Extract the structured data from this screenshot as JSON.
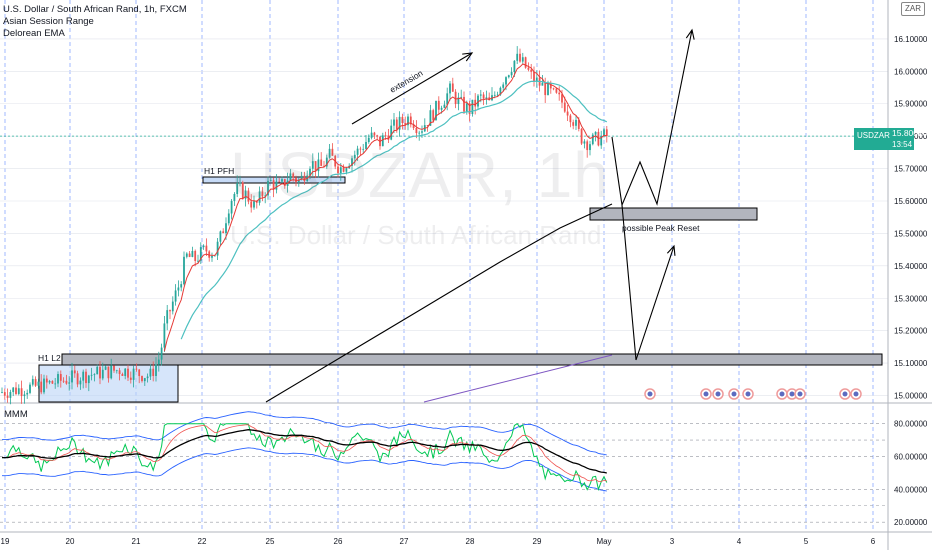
{
  "legend": {
    "title": "U.S. Dollar / South African Rand, 1h, FXCM",
    "indicator_1": "Asian Session Range",
    "indicator_2": "Delorean EMA",
    "oscillator": "MMM"
  },
  "symbol_badge": "ZAR",
  "watermark": {
    "main": "USDZAR, 1h",
    "sub": "U.S. Dollar / South African Rand"
  },
  "price_tag": {
    "symbol": "USDZAR",
    "value": "15.80020",
    "countdown": "13:54"
  },
  "annotations": {
    "h1_pfh": "H1 PFH",
    "h1_l2": "H1 L2",
    "extension": "extension",
    "peak_reset": "possible Peak Reset"
  },
  "colors": {
    "up": "#26a69a",
    "down": "#ef5350",
    "ema_red": "#e53935",
    "ema_teal": "#4dc0c0",
    "osc_green": "#00c853",
    "osc_band": "#2962ff",
    "grid_blue": "#2962ff",
    "price_line": "#22ab94"
  },
  "chart_data": [
    {
      "type": "candlestick",
      "symbol": "USDZAR",
      "timeframe": "1h",
      "title": "U.S. Dollar / South African Rand, 1h, FXCM",
      "y_ticks": [
        "16.10000",
        "16.00000",
        "15.90000",
        "15.80000",
        "15.70000",
        "15.60000",
        "15.50000",
        "15.40000",
        "15.30000",
        "15.20000",
        "15.10000",
        "15.00000"
      ],
      "x_ticks": [
        "19",
        "20",
        "21",
        "22",
        "25",
        "26",
        "27",
        "28",
        "29",
        "May",
        "3",
        "4",
        "5",
        "6"
      ],
      "ylim": [
        14.98,
        16.22
      ],
      "last_price": 15.8002,
      "candle_path": [
        [
          0,
          15.01
        ],
        [
          40,
          15.03
        ],
        [
          80,
          15.06
        ],
        [
          120,
          15.08
        ],
        [
          150,
          15.06
        ],
        [
          160,
          15.12
        ],
        [
          165,
          15.22
        ],
        [
          172,
          15.28
        ],
        [
          180,
          15.35
        ],
        [
          186,
          15.43
        ],
        [
          195,
          15.42
        ],
        [
          205,
          15.45
        ],
        [
          215,
          15.44
        ],
        [
          222,
          15.5
        ],
        [
          230,
          15.6
        ],
        [
          238,
          15.64
        ],
        [
          246,
          15.62
        ],
        [
          255,
          15.58
        ],
        [
          262,
          15.62
        ],
        [
          270,
          15.66
        ],
        [
          280,
          15.64
        ],
        [
          290,
          15.68
        ],
        [
          300,
          15.66
        ],
        [
          310,
          15.72
        ],
        [
          320,
          15.7
        ],
        [
          330,
          15.74
        ],
        [
          340,
          15.7
        ],
        [
          350,
          15.73
        ],
        [
          360,
          15.76
        ],
        [
          370,
          15.8
        ],
        [
          380,
          15.78
        ],
        [
          390,
          15.82
        ],
        [
          400,
          15.84
        ],
        [
          410,
          15.86
        ],
        [
          420,
          15.82
        ],
        [
          430,
          15.86
        ],
        [
          440,
          15.9
        ],
        [
          450,
          15.94
        ],
        [
          460,
          15.9
        ],
        [
          470,
          15.88
        ],
        [
          480,
          15.92
        ],
        [
          490,
          15.9
        ],
        [
          500,
          15.96
        ],
        [
          508,
          16.0
        ],
        [
          516,
          16.04
        ],
        [
          524,
          16.02
        ],
        [
          532,
          15.98
        ],
        [
          540,
          15.96
        ],
        [
          548,
          15.94
        ],
        [
          556,
          15.92
        ],
        [
          564,
          15.9
        ],
        [
          572,
          15.86
        ],
        [
          580,
          15.8
        ],
        [
          588,
          15.78
        ],
        [
          596,
          15.79
        ],
        [
          604,
          15.8
        ]
      ]
    },
    {
      "type": "line",
      "name": "MMM",
      "y_ticks": [
        "80.00000",
        "60.00000",
        "40.00000",
        "20.00000"
      ],
      "ylim": [
        14,
        92
      ]
    }
  ]
}
